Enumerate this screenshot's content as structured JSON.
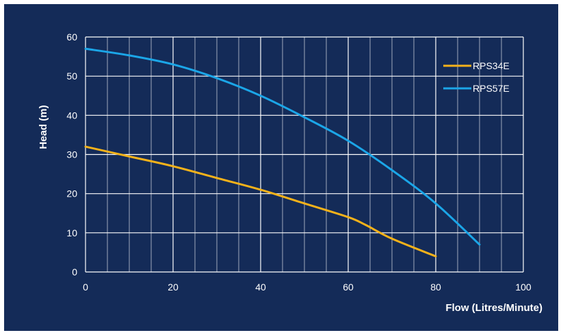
{
  "chart_data": {
    "type": "line",
    "xlabel": "Flow (Litres/Minute)",
    "ylabel": "Head (m)",
    "xlim": [
      0,
      100
    ],
    "ylim": [
      0,
      60
    ],
    "x_ticks": [
      "0",
      "20",
      "40",
      "60",
      "80",
      "100"
    ],
    "y_ticks": [
      "0",
      "10",
      "20",
      "30",
      "40",
      "50",
      "60"
    ],
    "grid": true,
    "legend_position": "top-right",
    "background_color": "#142b58",
    "grid_color": "#ffffff",
    "series": [
      {
        "name": "RPS34E",
        "color": "#f5b21a",
        "x": [
          0,
          10,
          20,
          30,
          40,
          50,
          60,
          64,
          70,
          80
        ],
        "y": [
          32,
          29.5,
          27,
          24,
          21,
          17.5,
          14,
          12,
          8.5,
          4
        ]
      },
      {
        "name": "RPS57E",
        "color": "#1ba6e8",
        "x": [
          0,
          10,
          20,
          30,
          40,
          50,
          60,
          70,
          80,
          90
        ],
        "y": [
          57,
          55.3,
          53,
          49.5,
          45,
          39.5,
          33.5,
          26,
          17.5,
          7
        ]
      }
    ]
  }
}
